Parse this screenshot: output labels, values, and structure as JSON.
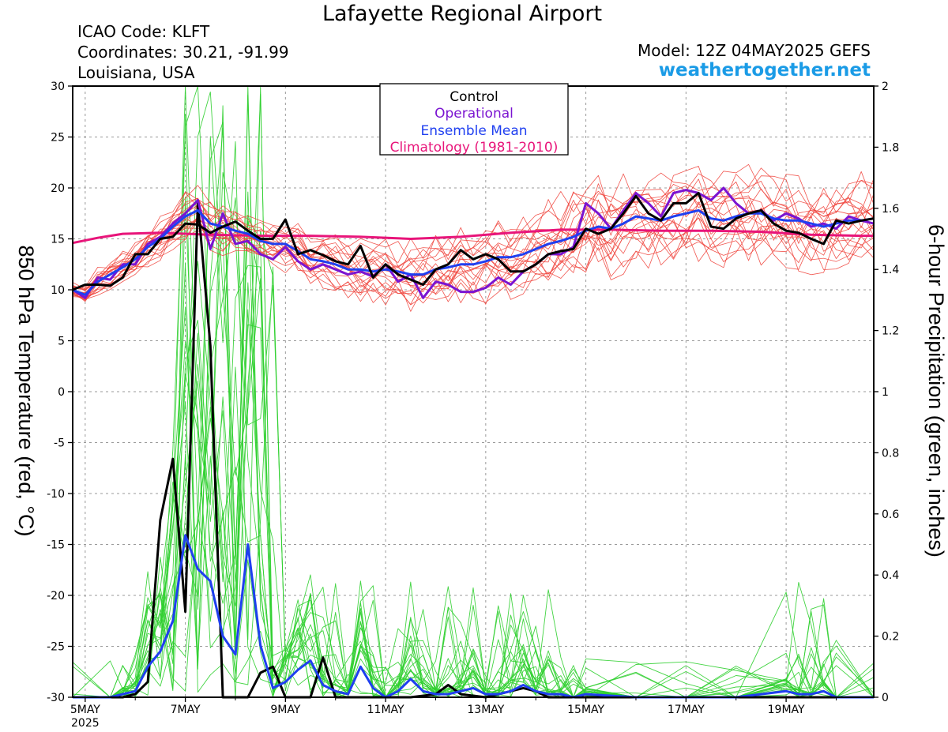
{
  "header": {
    "title": "Lafayette Regional Airport",
    "icao": "ICAO Code: KLFT",
    "coordinates": "Coordinates: 30.21, -91.99",
    "location": "Louisiana, USA",
    "model": "Model: 12Z 04MAY2025 GEFS",
    "site": "weathertogether.net"
  },
  "colors": {
    "control": "#000000",
    "operational": "#7b14d1",
    "ensemble_mean": "#1f3ff0",
    "climatology": "#e8157a",
    "members_temp": "#f0443c",
    "members_precip": "#2fcf2f"
  },
  "chart_data": {
    "type": "line",
    "title": "Lafayette Regional Airport",
    "ylabel_left": "850 hPa Temperature (red, °C)",
    "ylabel_right": "6-hour Precipitation (green, inches)",
    "ylim_left": [
      -30,
      30
    ],
    "ylim_right": [
      0,
      2
    ],
    "yticks_left": [
      30,
      25,
      20,
      15,
      10,
      5,
      0,
      -5,
      -10,
      -15,
      -20,
      -25,
      -30
    ],
    "yticks_right": [
      "2",
      "1.8",
      "1.6",
      "1.4",
      "1.2",
      "1",
      "0.8",
      "0.6",
      "0.4",
      "0.2",
      "0"
    ],
    "xlim_days": [
      4.75,
      20.75
    ],
    "xticks": [
      {
        "day": 5,
        "label": "5MAY",
        "sub": "2025"
      },
      {
        "day": 7,
        "label": "7MAY",
        "sub": ""
      },
      {
        "day": 9,
        "label": "9MAY",
        "sub": ""
      },
      {
        "day": 11,
        "label": "11MAY",
        "sub": ""
      },
      {
        "day": 13,
        "label": "13MAY",
        "sub": ""
      },
      {
        "day": 15,
        "label": "15MAY",
        "sub": ""
      },
      {
        "day": 17,
        "label": "17MAY",
        "sub": ""
      },
      {
        "day": 19,
        "label": "19MAY",
        "sub": ""
      }
    ],
    "legend": {
      "placement": "top-center",
      "entries": [
        {
          "label": "Control",
          "color": "#000000"
        },
        {
          "label": "Operational",
          "color": "#7b14d1"
        },
        {
          "label": "Ensemble Mean",
          "color": "#1f3ff0"
        },
        {
          "label": "Climatology (1981-2010)",
          "color": "#e8157a"
        }
      ]
    },
    "temperature": {
      "climatology": [
        [
          4.75,
          14.6
        ],
        [
          5.25,
          15.1
        ],
        [
          5.75,
          15.5
        ],
        [
          6.5,
          15.6
        ],
        [
          7.5,
          15.4
        ],
        [
          8.5,
          15.3
        ],
        [
          9.5,
          15.3
        ],
        [
          10.5,
          15.2
        ],
        [
          11.5,
          15.0
        ],
        [
          12.5,
          15.2
        ],
        [
          13.5,
          15.6
        ],
        [
          14.5,
          15.9
        ],
        [
          15.5,
          15.9
        ],
        [
          16.5,
          15.8
        ],
        [
          17.5,
          15.8
        ],
        [
          18.5,
          15.7
        ],
        [
          19.5,
          15.4
        ],
        [
          20.5,
          15.3
        ],
        [
          20.75,
          15.3
        ]
      ],
      "control": [
        [
          4.75,
          10.0
        ],
        [
          5.0,
          10.5
        ],
        [
          5.25,
          10.5
        ],
        [
          5.5,
          10.4
        ],
        [
          5.75,
          11.2
        ],
        [
          6.0,
          13.5
        ],
        [
          6.25,
          13.5
        ],
        [
          6.5,
          15.0
        ],
        [
          6.75,
          15.2
        ],
        [
          7.0,
          16.5
        ],
        [
          7.25,
          16.4
        ],
        [
          7.5,
          15.6
        ],
        [
          7.75,
          16.2
        ],
        [
          8.0,
          16.7
        ],
        [
          8.25,
          15.8
        ],
        [
          8.5,
          15.0
        ],
        [
          8.75,
          15.0
        ],
        [
          9.0,
          16.9
        ],
        [
          9.25,
          13.5
        ],
        [
          9.5,
          13.9
        ],
        [
          9.75,
          13.4
        ],
        [
          10.0,
          12.8
        ],
        [
          10.25,
          12.5
        ],
        [
          10.5,
          14.3
        ],
        [
          10.75,
          11.2
        ],
        [
          11.0,
          12.5
        ],
        [
          11.25,
          11.5
        ],
        [
          11.5,
          11.0
        ],
        [
          11.75,
          10.5
        ],
        [
          12.0,
          12.0
        ],
        [
          12.25,
          12.5
        ],
        [
          12.5,
          13.9
        ],
        [
          12.75,
          13.0
        ],
        [
          13.0,
          13.5
        ],
        [
          13.25,
          13.0
        ],
        [
          13.5,
          11.8
        ],
        [
          13.75,
          11.8
        ],
        [
          14.0,
          12.5
        ],
        [
          14.25,
          13.5
        ],
        [
          14.5,
          13.8
        ],
        [
          14.75,
          14.0
        ],
        [
          15.0,
          16.0
        ],
        [
          15.25,
          15.5
        ],
        [
          15.5,
          16.0
        ],
        [
          15.75,
          17.5
        ],
        [
          16.0,
          19.2
        ],
        [
          16.25,
          17.5
        ],
        [
          16.5,
          16.8
        ],
        [
          16.75,
          18.5
        ],
        [
          17.0,
          18.5
        ],
        [
          17.25,
          19.5
        ],
        [
          17.5,
          16.2
        ],
        [
          17.75,
          16.0
        ],
        [
          18.0,
          17.0
        ],
        [
          18.25,
          17.5
        ],
        [
          18.5,
          17.8
        ],
        [
          18.75,
          16.5
        ],
        [
          19.0,
          15.8
        ],
        [
          19.25,
          15.6
        ],
        [
          19.5,
          15.0
        ],
        [
          19.75,
          14.5
        ],
        [
          20.0,
          16.8
        ],
        [
          20.25,
          16.5
        ],
        [
          20.5,
          16.8
        ],
        [
          20.75,
          17.0
        ]
      ],
      "operational": [
        [
          4.75,
          10.0
        ],
        [
          5.0,
          9.2
        ],
        [
          5.25,
          11.2
        ],
        [
          5.5,
          11.0
        ],
        [
          5.75,
          12.5
        ],
        [
          6.0,
          12.5
        ],
        [
          6.25,
          14.5
        ],
        [
          6.5,
          15.2
        ],
        [
          6.75,
          16.5
        ],
        [
          7.0,
          17.5
        ],
        [
          7.25,
          18.8
        ],
        [
          7.5,
          14.0
        ],
        [
          7.75,
          17.5
        ],
        [
          8.0,
          14.5
        ],
        [
          8.25,
          14.8
        ],
        [
          8.5,
          13.5
        ],
        [
          8.75,
          13.0
        ],
        [
          9.0,
          14.2
        ],
        [
          9.25,
          12.8
        ],
        [
          9.5,
          12.0
        ],
        [
          9.75,
          12.5
        ],
        [
          10.0,
          12.0
        ],
        [
          10.25,
          11.5
        ],
        [
          10.5,
          11.8
        ],
        [
          10.75,
          11.3
        ],
        [
          11.0,
          12.5
        ],
        [
          11.25,
          10.8
        ],
        [
          11.5,
          11.5
        ],
        [
          11.75,
          9.2
        ],
        [
          12.0,
          10.8
        ],
        [
          12.25,
          10.5
        ],
        [
          12.5,
          9.8
        ],
        [
          12.75,
          9.8
        ],
        [
          13.0,
          10.2
        ],
        [
          13.25,
          11.2
        ],
        [
          13.5,
          10.5
        ],
        [
          13.75,
          11.8
        ],
        [
          14.0,
          12.5
        ],
        [
          14.25,
          13.5
        ],
        [
          14.5,
          13.5
        ],
        [
          14.75,
          14.2
        ],
        [
          15.0,
          18.5
        ],
        [
          15.25,
          17.5
        ],
        [
          15.5,
          16.0
        ],
        [
          15.75,
          17.8
        ],
        [
          16.0,
          19.5
        ],
        [
          16.25,
          18.5
        ],
        [
          16.5,
          17.2
        ],
        [
          16.75,
          19.5
        ],
        [
          17.0,
          19.8
        ],
        [
          17.25,
          19.5
        ],
        [
          17.5,
          18.8
        ],
        [
          17.75,
          20.0
        ],
        [
          18.0,
          18.5
        ],
        [
          18.25,
          17.5
        ],
        [
          18.5,
          17.8
        ],
        [
          18.75,
          16.8
        ],
        [
          19.0,
          17.5
        ],
        [
          19.25,
          17.0
        ],
        [
          19.5,
          16.2
        ],
        [
          19.75,
          16.5
        ],
        [
          20.0,
          16.0
        ],
        [
          20.25,
          17.2
        ],
        [
          20.5,
          16.8
        ],
        [
          20.75,
          16.5
        ]
      ],
      "ensemble_mean": [
        [
          4.75,
          10.0
        ],
        [
          5.0,
          9.5
        ],
        [
          5.25,
          10.8
        ],
        [
          5.5,
          11.5
        ],
        [
          5.75,
          12.2
        ],
        [
          6.0,
          13.0
        ],
        [
          6.25,
          14.2
        ],
        [
          6.5,
          15.0
        ],
        [
          6.75,
          16.2
        ],
        [
          7.0,
          17.2
        ],
        [
          7.25,
          17.8
        ],
        [
          7.5,
          16.5
        ],
        [
          7.75,
          16.2
        ],
        [
          8.0,
          15.8
        ],
        [
          8.25,
          15.5
        ],
        [
          8.5,
          14.8
        ],
        [
          8.75,
          14.5
        ],
        [
          9.0,
          14.5
        ],
        [
          9.25,
          13.8
        ],
        [
          9.5,
          13.0
        ],
        [
          9.75,
          12.8
        ],
        [
          10.0,
          12.5
        ],
        [
          10.25,
          12.0
        ],
        [
          10.5,
          12.0
        ],
        [
          10.75,
          11.8
        ],
        [
          11.0,
          12.0
        ],
        [
          11.25,
          11.8
        ],
        [
          11.5,
          11.5
        ],
        [
          11.75,
          11.5
        ],
        [
          12.0,
          12.0
        ],
        [
          12.25,
          12.2
        ],
        [
          12.5,
          12.5
        ],
        [
          12.75,
          12.5
        ],
        [
          13.0,
          12.8
        ],
        [
          13.25,
          13.2
        ],
        [
          13.5,
          13.2
        ],
        [
          13.75,
          13.5
        ],
        [
          14.0,
          14.0
        ],
        [
          14.25,
          14.5
        ],
        [
          14.5,
          14.8
        ],
        [
          14.75,
          15.2
        ],
        [
          15.0,
          15.8
        ],
        [
          15.25,
          16.2
        ],
        [
          15.5,
          16.0
        ],
        [
          15.75,
          16.5
        ],
        [
          16.0,
          17.2
        ],
        [
          16.25,
          17.0
        ],
        [
          16.5,
          16.8
        ],
        [
          16.75,
          17.2
        ],
        [
          17.0,
          17.5
        ],
        [
          17.25,
          17.8
        ],
        [
          17.5,
          17.0
        ],
        [
          17.75,
          16.8
        ],
        [
          18.0,
          17.2
        ],
        [
          18.25,
          17.5
        ],
        [
          18.5,
          17.5
        ],
        [
          18.75,
          17.0
        ],
        [
          19.0,
          16.8
        ],
        [
          19.25,
          16.8
        ],
        [
          19.5,
          16.5
        ],
        [
          19.75,
          16.2
        ],
        [
          20.0,
          16.5
        ],
        [
          20.25,
          16.8
        ],
        [
          20.5,
          16.8
        ],
        [
          20.75,
          17.0
        ]
      ],
      "member_count": 20,
      "member_spread_c": [
        0.8,
        0.8,
        1.5,
        1.5,
        1.5,
        1.5,
        2.0,
        2.0,
        2.0,
        2.5,
        2.5,
        2.5,
        2.5,
        2.0,
        2.0,
        2.0,
        2.5,
        2.5,
        2.5,
        2.5,
        3.0,
        3.0,
        3.0,
        3.0,
        3.5,
        3.5,
        3.5,
        3.5,
        3.5,
        3.5,
        3.5,
        3.5,
        3.5,
        4.0,
        4.0,
        4.0,
        4.0,
        4.0,
        4.5,
        4.5,
        4.5,
        4.5,
        4.5,
        4.5,
        4.5,
        4.5,
        4.5,
        4.5,
        4.5,
        4.5,
        4.5,
        4.5,
        4.5,
        4.5,
        4.5,
        4.5,
        4.5,
        4.5,
        4.5,
        4.5,
        4.5,
        4.5,
        4.5,
        4.5,
        4.5
      ]
    },
    "precipitation": {
      "control": [
        [
          4.75,
          0
        ],
        [
          5.75,
          0
        ],
        [
          6.0,
          0.01
        ],
        [
          6.25,
          0.05
        ],
        [
          6.5,
          0.58
        ],
        [
          6.75,
          0.78
        ],
        [
          7.0,
          0.28
        ],
        [
          7.25,
          1.62
        ],
        [
          7.5,
          1.15
        ],
        [
          7.75,
          0
        ],
        [
          8.25,
          0
        ],
        [
          8.5,
          0.08
        ],
        [
          8.75,
          0.1
        ],
        [
          9.0,
          0
        ],
        [
          9.5,
          0
        ],
        [
          9.75,
          0.13
        ],
        [
          10.0,
          0
        ],
        [
          11.0,
          0
        ],
        [
          11.5,
          0
        ],
        [
          12.0,
          0.01
        ],
        [
          12.25,
          0.04
        ],
        [
          12.5,
          0.01
        ],
        [
          13.0,
          0
        ],
        [
          13.5,
          0.02
        ],
        [
          13.75,
          0.03
        ],
        [
          14.0,
          0.02
        ],
        [
          14.25,
          0
        ],
        [
          15.0,
          0
        ],
        [
          20.75,
          0
        ]
      ],
      "ensemble_mean": [
        [
          4.75,
          0
        ],
        [
          5.5,
          0
        ],
        [
          5.75,
          0.01
        ],
        [
          6.0,
          0.02
        ],
        [
          6.25,
          0.1
        ],
        [
          6.5,
          0.15
        ],
        [
          6.75,
          0.25
        ],
        [
          7.0,
          0.53
        ],
        [
          7.25,
          0.42
        ],
        [
          7.5,
          0.38
        ],
        [
          7.75,
          0.2
        ],
        [
          8.0,
          0.14
        ],
        [
          8.25,
          0.5
        ],
        [
          8.5,
          0.17
        ],
        [
          8.75,
          0.03
        ],
        [
          9.0,
          0.05
        ],
        [
          9.25,
          0.09
        ],
        [
          9.5,
          0.12
        ],
        [
          9.75,
          0.04
        ],
        [
          10.0,
          0.02
        ],
        [
          10.25,
          0.01
        ],
        [
          10.5,
          0.1
        ],
        [
          10.75,
          0.03
        ],
        [
          11.0,
          0.0
        ],
        [
          11.25,
          0.02
        ],
        [
          11.5,
          0.06
        ],
        [
          11.75,
          0.02
        ],
        [
          12.0,
          0.01
        ],
        [
          12.25,
          0.01
        ],
        [
          12.5,
          0.02
        ],
        [
          12.75,
          0.03
        ],
        [
          13.0,
          0.01
        ],
        [
          13.25,
          0.01
        ],
        [
          13.5,
          0.02
        ],
        [
          13.75,
          0.04
        ],
        [
          14.0,
          0.02
        ],
        [
          14.25,
          0.01
        ],
        [
          14.5,
          0.01
        ],
        [
          14.75,
          0.0
        ],
        [
          15.0,
          0.01
        ],
        [
          16.0,
          0.0
        ],
        [
          17.0,
          0.0
        ],
        [
          18.0,
          0.0
        ],
        [
          19.0,
          0.02
        ],
        [
          19.25,
          0.01
        ],
        [
          19.5,
          0.01
        ],
        [
          19.75,
          0.02
        ],
        [
          20.0,
          0.0
        ],
        [
          20.75,
          0
        ]
      ],
      "member_count": 20
    }
  }
}
